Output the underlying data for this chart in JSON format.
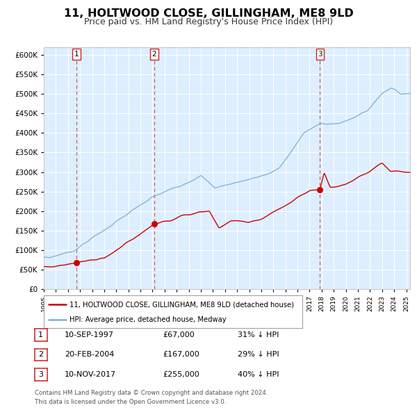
{
  "title": "11, HOLTWOOD CLOSE, GILLINGHAM, ME8 9LD",
  "subtitle": "Price paid vs. HM Land Registry's House Price Index (HPI)",
  "title_fontsize": 11.5,
  "subtitle_fontsize": 9,
  "plot_bg_color": "#ddeeff",
  "grid_color": "#ffffff",
  "ylim": [
    0,
    620000
  ],
  "yticks": [
    0,
    50000,
    100000,
    150000,
    200000,
    250000,
    300000,
    350000,
    400000,
    450000,
    500000,
    550000,
    600000
  ],
  "xlim_start": 1995.0,
  "xlim_end": 2025.3,
  "xtick_years": [
    1995,
    1996,
    1997,
    1998,
    1999,
    2000,
    2001,
    2002,
    2003,
    2004,
    2005,
    2006,
    2007,
    2008,
    2009,
    2010,
    2011,
    2012,
    2013,
    2014,
    2015,
    2016,
    2017,
    2018,
    2019,
    2020,
    2021,
    2022,
    2023,
    2024,
    2025
  ],
  "red_line_color": "#cc0000",
  "blue_line_color": "#7ab0d4",
  "sale_marker_color": "#cc0000",
  "vline_color": "#cc4444",
  "sales": [
    {
      "num": 1,
      "date_year": 1997.69,
      "price": 67000
    },
    {
      "num": 2,
      "date_year": 2004.13,
      "price": 167000
    },
    {
      "num": 3,
      "date_year": 2017.86,
      "price": 255000
    }
  ],
  "legend_label_red": "11, HOLTWOOD CLOSE, GILLINGHAM, ME8 9LD (detached house)",
  "legend_label_blue": "HPI: Average price, detached house, Medway",
  "footer_line1": "Contains HM Land Registry data © Crown copyright and database right 2024.",
  "footer_line2": "This data is licensed under the Open Government Licence v3.0.",
  "table_rows": [
    {
      "num": "1",
      "date": "10-SEP-1997",
      "price": "£67,000",
      "pct": "31% ↓ HPI"
    },
    {
      "num": "2",
      "date": "20-FEB-2004",
      "price": "£167,000",
      "pct": "29% ↓ HPI"
    },
    {
      "num": "3",
      "date": "10-NOV-2017",
      "price": "£255,000",
      "pct": "40% ↓ HPI"
    }
  ]
}
